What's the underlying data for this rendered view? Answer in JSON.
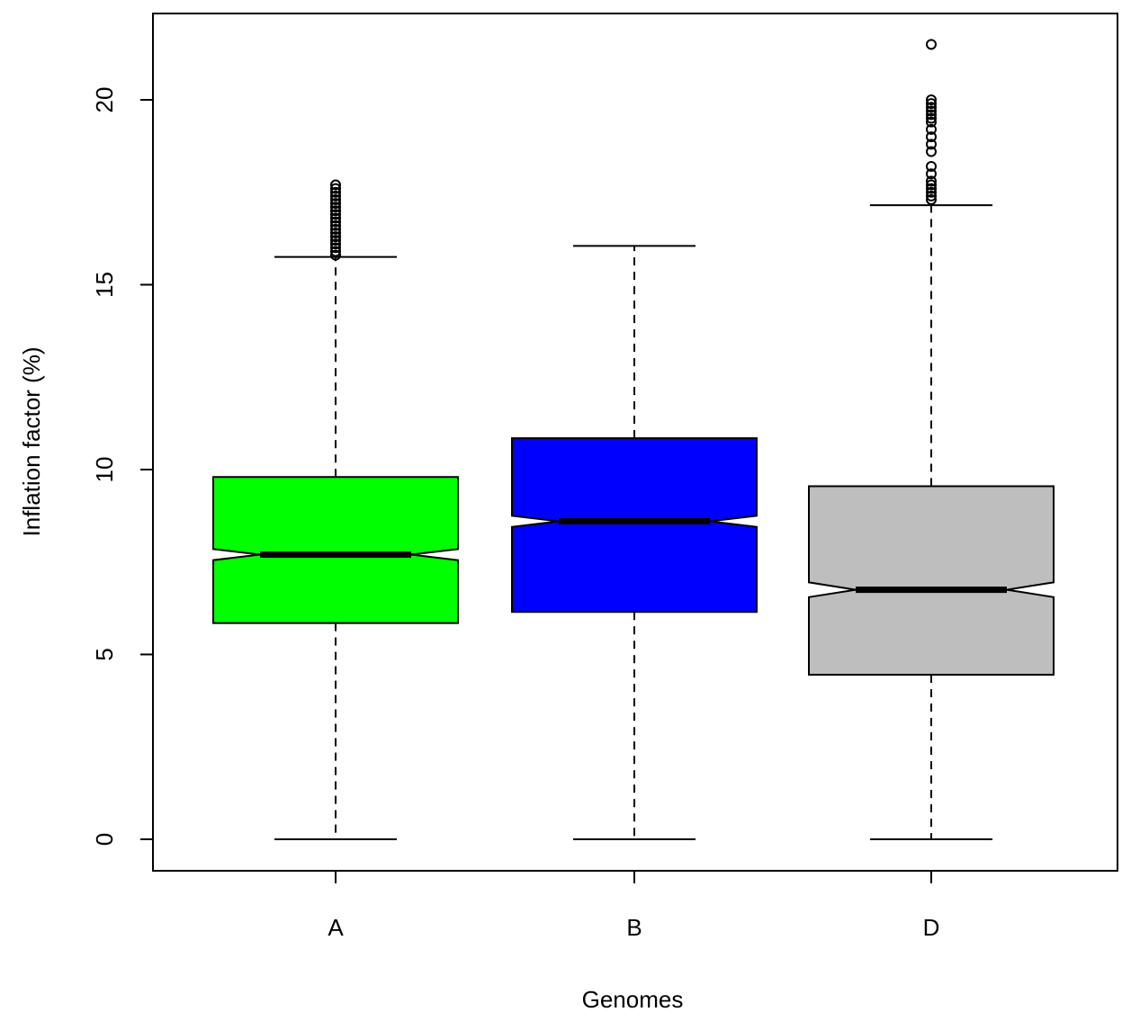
{
  "chart_data": {
    "type": "boxplot",
    "title": "",
    "xlabel": "Genomes",
    "ylabel": "Inflation factor (%)",
    "ylim": [
      -0.8,
      22.4
    ],
    "yticks": [
      0,
      5,
      10,
      15,
      20
    ],
    "grid": false,
    "notched": true,
    "categories": [
      "A",
      "B",
      "D"
    ],
    "series": [
      {
        "category": "A",
        "color": "#00ff00",
        "whisker_low": 0,
        "q1": 5.85,
        "median": 7.7,
        "q3": 9.8,
        "whisker_high": 15.75,
        "notch_low": 7.55,
        "notch_high": 7.85,
        "outliers": [
          15.8,
          15.9,
          16.0,
          16.1,
          16.2,
          16.3,
          16.4,
          16.5,
          16.6,
          16.7,
          16.8,
          16.9,
          17.0,
          17.1,
          17.2,
          17.3,
          17.4,
          17.5,
          17.6,
          17.7
        ]
      },
      {
        "category": "B",
        "color": "#0000ff",
        "whisker_low": 0,
        "q1": 6.15,
        "median": 8.6,
        "q3": 10.85,
        "whisker_high": 16.05,
        "notch_low": 8.45,
        "notch_high": 8.75,
        "outliers": []
      },
      {
        "category": "D",
        "color": "#bebebe",
        "whisker_low": 0,
        "q1": 4.45,
        "median": 6.75,
        "q3": 9.55,
        "whisker_high": 17.15,
        "notch_low": 6.55,
        "notch_high": 6.95,
        "outliers": [
          17.3,
          17.4,
          17.5,
          17.6,
          17.7,
          17.8,
          18.0,
          18.2,
          18.6,
          18.8,
          19.0,
          19.2,
          19.4,
          19.5,
          19.6,
          19.7,
          19.8,
          19.9,
          20.0,
          21.5
        ]
      }
    ]
  }
}
